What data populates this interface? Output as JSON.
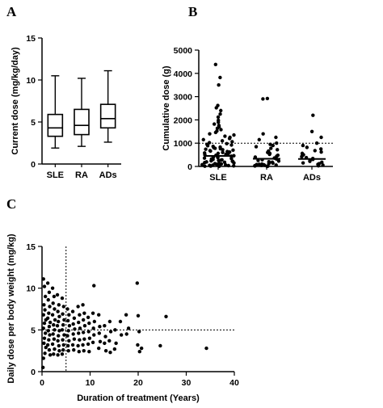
{
  "chart_data": [
    {
      "panel": "A",
      "type": "boxplot",
      "ylabel": "Current dose (mg/kg/day)",
      "xlabel": "",
      "ylim": [
        0,
        15
      ],
      "yticks": [
        0,
        5,
        10,
        15
      ],
      "categories": [
        "SLE",
        "RA",
        "ADs"
      ],
      "boxes": [
        {
          "category": "SLE",
          "min": 1.9,
          "q1": 3.3,
          "median": 4.3,
          "q3": 5.9,
          "max": 10.5
        },
        {
          "category": "RA",
          "min": 2.1,
          "q1": 3.5,
          "median": 4.6,
          "q3": 6.5,
          "max": 10.2
        },
        {
          "category": "ADs",
          "min": 2.6,
          "q1": 4.3,
          "median": 5.4,
          "q3": 7.1,
          "max": 11.1
        }
      ]
    },
    {
      "panel": "B",
      "type": "scatter",
      "ylabel": "Cumulative dose (g)",
      "xlabel": "",
      "ylim": [
        0,
        5000
      ],
      "yticks": [
        0,
        1000,
        2000,
        3000,
        4000,
        5000
      ],
      "categories": [
        "SLE",
        "RA",
        "ADs"
      ],
      "reference_line": 1000,
      "group_means": [
        450,
        330,
        320
      ],
      "groups": [
        {
          "category": "SLE",
          "values": [
            4380,
            3820,
            3500,
            2620,
            2520,
            2400,
            2250,
            2120,
            1980,
            1900,
            1820,
            1760,
            1700,
            1640,
            1580,
            1520,
            1460,
            1400,
            1350,
            1300,
            1250,
            1200,
            1150,
            1100,
            1060,
            1020,
            980,
            950,
            920,
            890,
            860,
            830,
            800,
            780,
            760,
            740,
            720,
            700,
            680,
            660,
            640,
            620,
            600,
            580,
            560,
            540,
            520,
            500,
            480,
            460,
            440,
            420,
            400,
            380,
            360,
            340,
            320,
            300,
            285,
            270,
            255,
            240,
            225,
            210,
            195,
            180,
            165,
            150,
            135,
            120,
            105,
            95,
            85,
            75,
            65,
            55,
            45,
            35,
            25,
            15,
            10,
            5
          ]
        },
        {
          "category": "RA",
          "values": [
            2920,
            2900,
            1400,
            1250,
            1150,
            1000,
            950,
            900,
            850,
            780,
            720,
            660,
            600,
            560,
            520,
            480,
            440,
            400,
            360,
            320,
            290,
            260,
            230,
            200,
            180,
            160,
            140,
            120,
            100,
            90,
            80,
            70,
            60,
            50,
            40,
            30,
            20,
            10,
            5
          ]
        },
        {
          "category": "ADs",
          "values": [
            2200,
            1500,
            1250,
            1000,
            900,
            820,
            750,
            680,
            620,
            560,
            500,
            460,
            420,
            380,
            340,
            300,
            260,
            220,
            180,
            150,
            120,
            90,
            60,
            30
          ]
        }
      ]
    },
    {
      "panel": "C",
      "type": "scatter",
      "xlabel": "Duration of treatment (Years)",
      "ylabel": "Daily dose per body weight (mg/kg)",
      "xlim": [
        0,
        40
      ],
      "ylim": [
        0,
        15
      ],
      "xticks": [
        0,
        10,
        20,
        30,
        40
      ],
      "yticks": [
        0,
        5,
        10,
        15
      ],
      "reference_x": 5,
      "reference_y": 5,
      "points": [
        [
          0.3,
          11.1
        ],
        [
          0.5,
          10.2
        ],
        [
          0.7,
          9.0
        ],
        [
          0.4,
          8.0
        ],
        [
          0.6,
          7.4
        ],
        [
          0.3,
          6.8
        ],
        [
          0.8,
          6.2
        ],
        [
          0.5,
          5.8
        ],
        [
          0.3,
          5.2
        ],
        [
          0.7,
          4.6
        ],
        [
          0.5,
          4.0
        ],
        [
          0.4,
          3.4
        ],
        [
          0.8,
          2.9
        ],
        [
          0.6,
          2.2
        ],
        [
          0.3,
          1.6
        ],
        [
          0.2,
          0.5
        ],
        [
          1.2,
          10.6
        ],
        [
          1.5,
          9.5
        ],
        [
          1.3,
          8.6
        ],
        [
          1.6,
          7.8
        ],
        [
          1.4,
          7.0
        ],
        [
          1.2,
          6.4
        ],
        [
          1.7,
          5.9
        ],
        [
          1.5,
          5.4
        ],
        [
          1.3,
          4.9
        ],
        [
          1.6,
          4.4
        ],
        [
          1.4,
          3.8
        ],
        [
          1.2,
          3.2
        ],
        [
          1.5,
          2.6
        ],
        [
          1.7,
          2.0
        ],
        [
          2.2,
          10.0
        ],
        [
          2.5,
          9.0
        ],
        [
          2.3,
          8.2
        ],
        [
          2.6,
          7.5
        ],
        [
          2.2,
          6.8
        ],
        [
          2.7,
          6.2
        ],
        [
          2.4,
          5.6
        ],
        [
          2.6,
          5.0
        ],
        [
          2.3,
          4.5
        ],
        [
          2.5,
          3.9
        ],
        [
          2.2,
          3.3
        ],
        [
          2.6,
          2.7
        ],
        [
          2.4,
          2.1
        ],
        [
          3.2,
          9.2
        ],
        [
          3.5,
          8.0
        ],
        [
          3.3,
          7.2
        ],
        [
          3.6,
          6.6
        ],
        [
          3.4,
          6.0
        ],
        [
          3.2,
          5.5
        ],
        [
          3.6,
          4.9
        ],
        [
          3.4,
          4.3
        ],
        [
          3.3,
          3.7
        ],
        [
          3.5,
          3.1
        ],
        [
          3.6,
          2.5
        ],
        [
          3.3,
          2.0
        ],
        [
          4.2,
          8.8
        ],
        [
          4.5,
          7.8
        ],
        [
          4.3,
          6.9
        ],
        [
          4.6,
          6.2
        ],
        [
          4.4,
          5.6
        ],
        [
          4.2,
          5.0
        ],
        [
          4.6,
          4.4
        ],
        [
          4.3,
          3.8
        ],
        [
          4.5,
          3.2
        ],
        [
          4.4,
          2.6
        ],
        [
          4.2,
          2.1
        ],
        [
          5.3,
          7.5
        ],
        [
          5.6,
          6.8
        ],
        [
          5.4,
          6.1
        ],
        [
          5.7,
          5.5
        ],
        [
          5.5,
          4.9
        ],
        [
          5.3,
          4.3
        ],
        [
          5.6,
          3.7
        ],
        [
          5.4,
          3.1
        ],
        [
          5.5,
          2.5
        ],
        [
          6.4,
          7.2
        ],
        [
          6.7,
          6.4
        ],
        [
          6.5,
          5.7
        ],
        [
          6.8,
          5.1
        ],
        [
          6.5,
          4.5
        ],
        [
          6.7,
          3.9
        ],
        [
          6.4,
          3.2
        ],
        [
          6.6,
          2.6
        ],
        [
          7.5,
          7.8
        ],
        [
          7.8,
          6.8
        ],
        [
          7.6,
          5.9
        ],
        [
          7.9,
          5.2
        ],
        [
          7.6,
          4.6
        ],
        [
          7.8,
          3.8
        ],
        [
          7.5,
          3.1
        ],
        [
          7.7,
          2.4
        ],
        [
          8.5,
          8.0
        ],
        [
          8.8,
          7.0
        ],
        [
          8.6,
          6.2
        ],
        [
          8.9,
          5.5
        ],
        [
          8.6,
          4.7
        ],
        [
          8.8,
          3.9
        ],
        [
          8.5,
          3.2
        ],
        [
          8.7,
          2.5
        ],
        [
          9.6,
          6.5
        ],
        [
          9.8,
          5.8
        ],
        [
          9.7,
          4.8
        ],
        [
          9.9,
          4.0
        ],
        [
          9.6,
          3.3
        ],
        [
          9.8,
          2.4
        ],
        [
          10.8,
          10.3
        ],
        [
          10.6,
          7.0
        ],
        [
          10.9,
          6.0
        ],
        [
          10.7,
          5.2
        ],
        [
          10.8,
          4.4
        ],
        [
          10.6,
          3.5
        ],
        [
          11.8,
          6.8
        ],
        [
          12.0,
          5.4
        ],
        [
          11.9,
          4.6
        ],
        [
          12.1,
          3.6
        ],
        [
          11.8,
          2.8
        ],
        [
          13.0,
          5.5
        ],
        [
          13.2,
          4.2
        ],
        [
          13.0,
          3.4
        ],
        [
          13.3,
          2.5
        ],
        [
          14.1,
          6.0
        ],
        [
          14.3,
          4.8
        ],
        [
          14.0,
          3.7
        ],
        [
          14.2,
          2.3
        ],
        [
          15.2,
          5.0
        ],
        [
          15.4,
          3.4
        ],
        [
          15.1,
          2.7
        ],
        [
          16.3,
          6.0
        ],
        [
          16.5,
          4.4
        ],
        [
          17.5,
          6.8
        ],
        [
          17.6,
          4.5
        ],
        [
          18.0,
          5.2
        ],
        [
          19.8,
          10.6
        ],
        [
          20.0,
          6.7
        ],
        [
          20.2,
          4.8
        ],
        [
          19.9,
          3.2
        ],
        [
          20.3,
          2.4
        ],
        [
          20.7,
          2.8
        ],
        [
          24.6,
          3.1
        ],
        [
          25.8,
          6.6
        ],
        [
          34.2,
          2.8
        ]
      ]
    }
  ]
}
